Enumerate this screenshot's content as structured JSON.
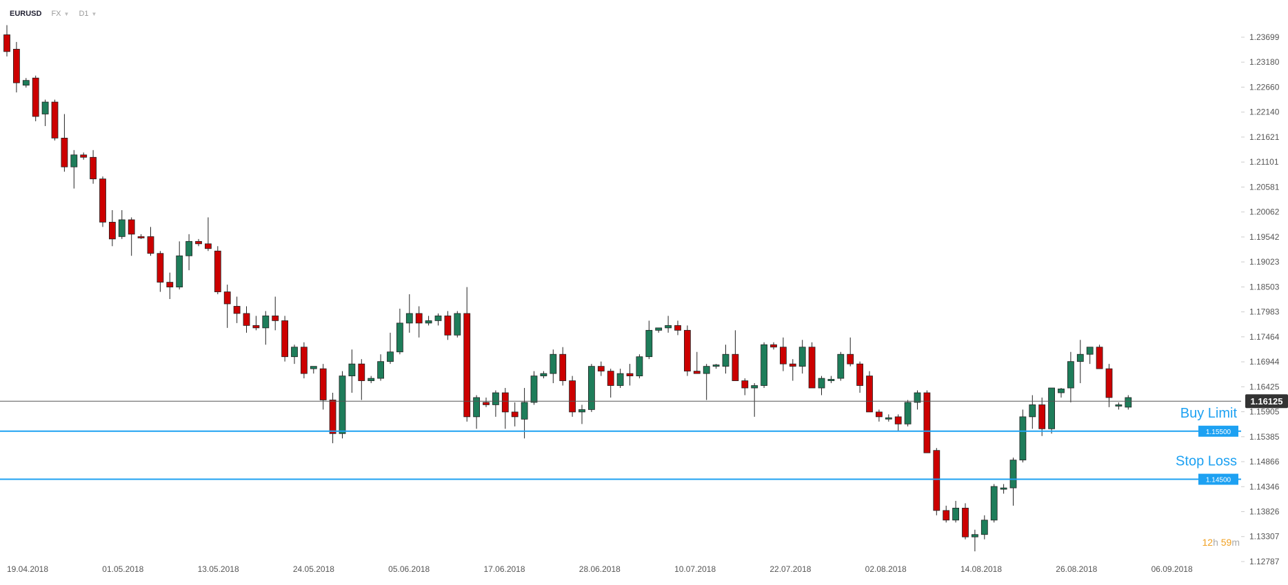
{
  "toolbar": {
    "symbol": "EURUSD",
    "market": "FX",
    "timeframe": "D1"
  },
  "colors": {
    "bull": "#1e7d5a",
    "bear": "#cc0000",
    "level_line": "#1da1f2",
    "price_line": "#555555",
    "axis_text": "#555555"
  },
  "icons": [
    "chevron-down-icon"
  ],
  "countdown": {
    "hours": "12",
    "h_unit": "h",
    "minutes": "59",
    "m_unit": "m"
  },
  "chart_data": {
    "type": "candlestick",
    "symbol": "EURUSD",
    "timeframe": "D1",
    "current_price": 1.16125,
    "current_price_label": "1.16125",
    "y_range": [
      1.1265,
      1.2425
    ],
    "y_ticks": [
      "1.23699",
      "1.23180",
      "1.22660",
      "1.22140",
      "1.21621",
      "1.21101",
      "1.20581",
      "1.20062",
      "1.19542",
      "1.19023",
      "1.18503",
      "1.17983",
      "1.17464",
      "1.16944",
      "1.16425",
      "1.15905",
      "1.15385",
      "1.14866",
      "1.14346",
      "1.13826",
      "1.13307",
      "1.12787"
    ],
    "x_ticks": [
      "19.04.2018",
      "01.05.2018",
      "13.05.2018",
      "24.05.2018",
      "05.06.2018",
      "17.06.2018",
      "28.06.2018",
      "10.07.2018",
      "22.07.2018",
      "02.08.2018",
      "14.08.2018",
      "26.08.2018",
      "06.09.2018"
    ],
    "levels": [
      {
        "name": "Buy Limit",
        "price": 1.155,
        "label": "1.15500"
      },
      {
        "name": "Stop Loss",
        "price": 1.145,
        "label": "1.14500"
      }
    ],
    "candles": [
      [
        1.2375,
        1.2395,
        1.233,
        1.234
      ],
      [
        1.2345,
        1.236,
        1.2255,
        1.2275
      ],
      [
        1.227,
        1.2285,
        1.2265,
        1.228
      ],
      [
        1.2285,
        1.229,
        1.2195,
        1.2205
      ],
      [
        1.221,
        1.224,
        1.2185,
        1.2235
      ],
      [
        1.2235,
        1.224,
        1.2155,
        1.216
      ],
      [
        1.216,
        1.221,
        1.209,
        1.21
      ],
      [
        1.21,
        1.2135,
        1.2055,
        1.2125
      ],
      [
        1.2125,
        1.213,
        1.2115,
        1.212
      ],
      [
        1.212,
        1.2135,
        1.2065,
        1.2075
      ],
      [
        1.2075,
        1.208,
        1.1975,
        1.1985
      ],
      [
        1.1985,
        1.201,
        1.1935,
        1.195
      ],
      [
        1.1955,
        1.201,
        1.195,
        1.199
      ],
      [
        1.199,
        1.1995,
        1.1915,
        1.196
      ],
      [
        1.1955,
        1.196,
        1.195,
        1.1953
      ],
      [
        1.1955,
        1.1975,
        1.1915,
        1.192
      ],
      [
        1.192,
        1.1925,
        1.184,
        1.186
      ],
      [
        1.186,
        1.188,
        1.1825,
        1.185
      ],
      [
        1.185,
        1.1945,
        1.1845,
        1.1915
      ],
      [
        1.1915,
        1.196,
        1.1885,
        1.1945
      ],
      [
        1.1945,
        1.195,
        1.1935,
        1.194
      ],
      [
        1.194,
        1.1995,
        1.1925,
        1.193
      ],
      [
        1.1925,
        1.1935,
        1.1835,
        1.184
      ],
      [
        1.184,
        1.1855,
        1.1765,
        1.1815
      ],
      [
        1.181,
        1.183,
        1.1775,
        1.1795
      ],
      [
        1.1795,
        1.181,
        1.1755,
        1.177
      ],
      [
        1.177,
        1.179,
        1.176,
        1.1765
      ],
      [
        1.1765,
        1.18,
        1.173,
        1.179
      ],
      [
        1.179,
        1.183,
        1.176,
        1.178
      ],
      [
        1.178,
        1.179,
        1.1695,
        1.1705
      ],
      [
        1.1705,
        1.173,
        1.169,
        1.1725
      ],
      [
        1.1725,
        1.1735,
        1.166,
        1.167
      ],
      [
        1.168,
        1.1685,
        1.167,
        1.1685
      ],
      [
        1.168,
        1.169,
        1.1595,
        1.1615
      ],
      [
        1.1615,
        1.163,
        1.1525,
        1.1545
      ],
      [
        1.1545,
        1.1675,
        1.1535,
        1.1665
      ],
      [
        1.1665,
        1.172,
        1.163,
        1.169
      ],
      [
        1.169,
        1.17,
        1.1615,
        1.1655
      ],
      [
        1.1655,
        1.1665,
        1.165,
        1.166
      ],
      [
        1.166,
        1.171,
        1.1655,
        1.1695
      ],
      [
        1.1695,
        1.1755,
        1.169,
        1.1715
      ],
      [
        1.1715,
        1.1805,
        1.171,
        1.1775
      ],
      [
        1.1775,
        1.1835,
        1.1755,
        1.1795
      ],
      [
        1.1795,
        1.181,
        1.1745,
        1.1775
      ],
      [
        1.1775,
        1.179,
        1.177,
        1.178
      ],
      [
        1.178,
        1.1795,
        1.177,
        1.179
      ],
      [
        1.179,
        1.18,
        1.174,
        1.175
      ],
      [
        1.175,
        1.18,
        1.1745,
        1.1795
      ],
      [
        1.1795,
        1.185,
        1.157,
        1.158
      ],
      [
        1.158,
        1.1625,
        1.1555,
        1.162
      ],
      [
        1.161,
        1.162,
        1.16,
        1.1605
      ],
      [
        1.1605,
        1.1635,
        1.158,
        1.163
      ],
      [
        1.163,
        1.164,
        1.1555,
        1.159
      ],
      [
        1.159,
        1.161,
        1.156,
        1.158
      ],
      [
        1.1575,
        1.164,
        1.1535,
        1.161
      ],
      [
        1.161,
        1.1675,
        1.1605,
        1.1665
      ],
      [
        1.1665,
        1.1675,
        1.166,
        1.167
      ],
      [
        1.167,
        1.172,
        1.165,
        1.171
      ],
      [
        1.171,
        1.1725,
        1.1645,
        1.1655
      ],
      [
        1.1655,
        1.1665,
        1.158,
        1.159
      ],
      [
        1.159,
        1.1605,
        1.1565,
        1.1595
      ],
      [
        1.1595,
        1.169,
        1.159,
        1.1685
      ],
      [
        1.1685,
        1.1695,
        1.1665,
        1.1675
      ],
      [
        1.1675,
        1.168,
        1.162,
        1.1645
      ],
      [
        1.1645,
        1.168,
        1.164,
        1.167
      ],
      [
        1.167,
        1.169,
        1.1645,
        1.1665
      ],
      [
        1.1665,
        1.171,
        1.166,
        1.1705
      ],
      [
        1.1705,
        1.178,
        1.17,
        1.176
      ],
      [
        1.176,
        1.1765,
        1.1755,
        1.1765
      ],
      [
        1.1765,
        1.179,
        1.1755,
        1.177
      ],
      [
        1.177,
        1.178,
        1.175,
        1.176
      ],
      [
        1.176,
        1.177,
        1.1665,
        1.1675
      ],
      [
        1.1675,
        1.1715,
        1.167,
        1.167
      ],
      [
        1.167,
        1.169,
        1.1615,
        1.1685
      ],
      [
        1.1685,
        1.169,
        1.168,
        1.1688
      ],
      [
        1.1685,
        1.173,
        1.167,
        1.171
      ],
      [
        1.171,
        1.176,
        1.1655,
        1.1655
      ],
      [
        1.1655,
        1.166,
        1.1625,
        1.164
      ],
      [
        1.164,
        1.165,
        1.158,
        1.1645
      ],
      [
        1.1645,
        1.1735,
        1.164,
        1.173
      ],
      [
        1.173,
        1.1735,
        1.172,
        1.1725
      ],
      [
        1.1725,
        1.1745,
        1.1675,
        1.169
      ],
      [
        1.169,
        1.17,
        1.1655,
        1.1685
      ],
      [
        1.1685,
        1.174,
        1.167,
        1.1725
      ],
      [
        1.1725,
        1.1735,
        1.164,
        1.164
      ],
      [
        1.164,
        1.1665,
        1.1625,
        1.166
      ],
      [
        1.1655,
        1.1665,
        1.165,
        1.1658
      ],
      [
        1.166,
        1.1715,
        1.1655,
        1.171
      ],
      [
        1.171,
        1.1745,
        1.1685,
        1.169
      ],
      [
        1.169,
        1.1695,
        1.163,
        1.1645
      ],
      [
        1.1665,
        1.1675,
        1.159,
        1.159
      ],
      [
        1.159,
        1.1595,
        1.157,
        1.158
      ],
      [
        1.1578,
        1.1585,
        1.157,
        1.1578
      ],
      [
        1.158,
        1.1585,
        1.155,
        1.1565
      ],
      [
        1.1565,
        1.1615,
        1.156,
        1.161
      ],
      [
        1.161,
        1.1635,
        1.1595,
        1.163
      ],
      [
        1.163,
        1.1635,
        1.1505,
        1.1505
      ],
      [
        1.151,
        1.1515,
        1.1375,
        1.1385
      ],
      [
        1.1385,
        1.1395,
        1.136,
        1.1365
      ],
      [
        1.1365,
        1.1405,
        1.136,
        1.139
      ],
      [
        1.139,
        1.14,
        1.1325,
        1.133
      ],
      [
        1.133,
        1.1345,
        1.13,
        1.1335
      ],
      [
        1.1335,
        1.1375,
        1.1325,
        1.1365
      ],
      [
        1.1365,
        1.144,
        1.136,
        1.1435
      ],
      [
        1.143,
        1.144,
        1.142,
        1.1432
      ],
      [
        1.1432,
        1.1495,
        1.1395,
        1.149
      ],
      [
        1.149,
        1.1595,
        1.1485,
        1.158
      ],
      [
        1.158,
        1.1625,
        1.1555,
        1.1605
      ],
      [
        1.1605,
        1.162,
        1.154,
        1.1555
      ],
      [
        1.1555,
        1.164,
        1.1545,
        1.164
      ],
      [
        1.163,
        1.164,
        1.162,
        1.1638
      ],
      [
        1.164,
        1.1715,
        1.161,
        1.1695
      ],
      [
        1.1695,
        1.174,
        1.165,
        1.171
      ],
      [
        1.171,
        1.1725,
        1.169,
        1.1725
      ],
      [
        1.1725,
        1.173,
        1.168,
        1.168
      ],
      [
        1.168,
        1.169,
        1.16,
        1.162
      ],
      [
        1.1605,
        1.161,
        1.1595,
        1.1605
      ],
      [
        1.16,
        1.1625,
        1.1595,
        1.162
      ]
    ]
  }
}
